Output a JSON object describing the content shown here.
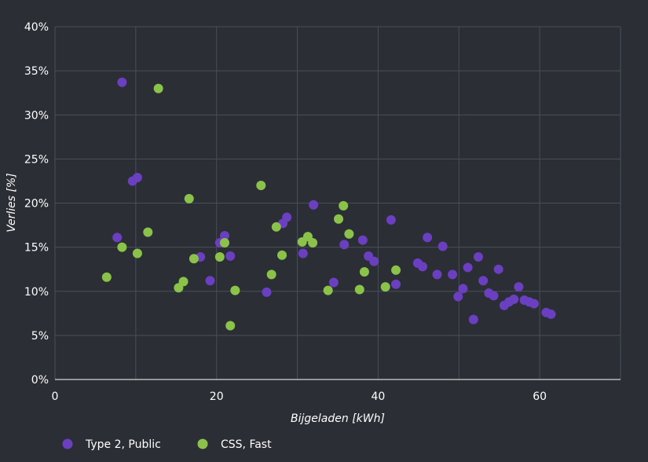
{
  "chart_data": {
    "type": "scatter",
    "xlabel": "Bijgeladen [kWh]",
    "ylabel": "Verlies [%]",
    "xlim": [
      0,
      70
    ],
    "ylim": [
      0,
      40
    ],
    "x_ticks": [
      "0",
      "20",
      "40",
      "60"
    ],
    "y_ticks": [
      "0%",
      "5%",
      "10%",
      "15%",
      "20%",
      "25%",
      "30%",
      "35%",
      "40%"
    ],
    "grid": true,
    "legend_position": "bottom-left",
    "series": [
      {
        "name": "Type 2, Public",
        "color": "#6a3fc0",
        "points": [
          [
            7.7,
            16.1
          ],
          [
            8.3,
            33.7
          ],
          [
            9.6,
            22.5
          ],
          [
            10.2,
            22.9
          ],
          [
            18.0,
            13.9
          ],
          [
            19.2,
            11.2
          ],
          [
            20.4,
            15.5
          ],
          [
            21.0,
            16.3
          ],
          [
            21.7,
            14.0
          ],
          [
            26.2,
            9.9
          ],
          [
            28.2,
            17.7
          ],
          [
            28.7,
            18.4
          ],
          [
            30.7,
            14.3
          ],
          [
            32.0,
            19.8
          ],
          [
            34.5,
            11.0
          ],
          [
            35.8,
            15.3
          ],
          [
            38.1,
            15.8
          ],
          [
            38.8,
            14.0
          ],
          [
            39.5,
            13.4
          ],
          [
            41.6,
            18.1
          ],
          [
            42.2,
            10.8
          ],
          [
            44.9,
            13.2
          ],
          [
            45.5,
            12.8
          ],
          [
            46.1,
            16.1
          ],
          [
            47.3,
            11.9
          ],
          [
            48.0,
            15.1
          ],
          [
            49.2,
            11.9
          ],
          [
            49.9,
            9.4
          ],
          [
            50.5,
            10.3
          ],
          [
            51.1,
            12.7
          ],
          [
            51.8,
            6.8
          ],
          [
            52.4,
            13.9
          ],
          [
            53.0,
            11.2
          ],
          [
            53.7,
            9.8
          ],
          [
            54.3,
            9.5
          ],
          [
            54.9,
            12.5
          ],
          [
            55.6,
            8.4
          ],
          [
            56.2,
            8.8
          ],
          [
            56.8,
            9.1
          ],
          [
            57.4,
            10.5
          ],
          [
            58.1,
            9.0
          ],
          [
            58.7,
            8.8
          ],
          [
            59.3,
            8.6
          ],
          [
            60.8,
            7.6
          ],
          [
            61.4,
            7.4
          ]
        ]
      },
      {
        "name": "CSS, Fast",
        "color": "#8bc34a",
        "points": [
          [
            6.4,
            11.6
          ],
          [
            8.3,
            15.0
          ],
          [
            10.2,
            14.3
          ],
          [
            11.5,
            16.7
          ],
          [
            12.8,
            33.0
          ],
          [
            15.3,
            10.4
          ],
          [
            15.9,
            11.1
          ],
          [
            16.6,
            20.5
          ],
          [
            17.2,
            13.7
          ],
          [
            20.4,
            13.9
          ],
          [
            21.0,
            15.5
          ],
          [
            21.7,
            6.1
          ],
          [
            22.3,
            10.1
          ],
          [
            25.5,
            22.0
          ],
          [
            26.8,
            11.9
          ],
          [
            27.4,
            17.3
          ],
          [
            28.1,
            14.1
          ],
          [
            30.6,
            15.6
          ],
          [
            31.3,
            16.2
          ],
          [
            31.9,
            15.5
          ],
          [
            33.8,
            10.1
          ],
          [
            35.1,
            18.2
          ],
          [
            35.7,
            19.7
          ],
          [
            36.4,
            16.5
          ],
          [
            37.7,
            10.2
          ],
          [
            38.3,
            12.2
          ],
          [
            40.9,
            10.5
          ],
          [
            42.2,
            12.4
          ]
        ]
      }
    ]
  }
}
